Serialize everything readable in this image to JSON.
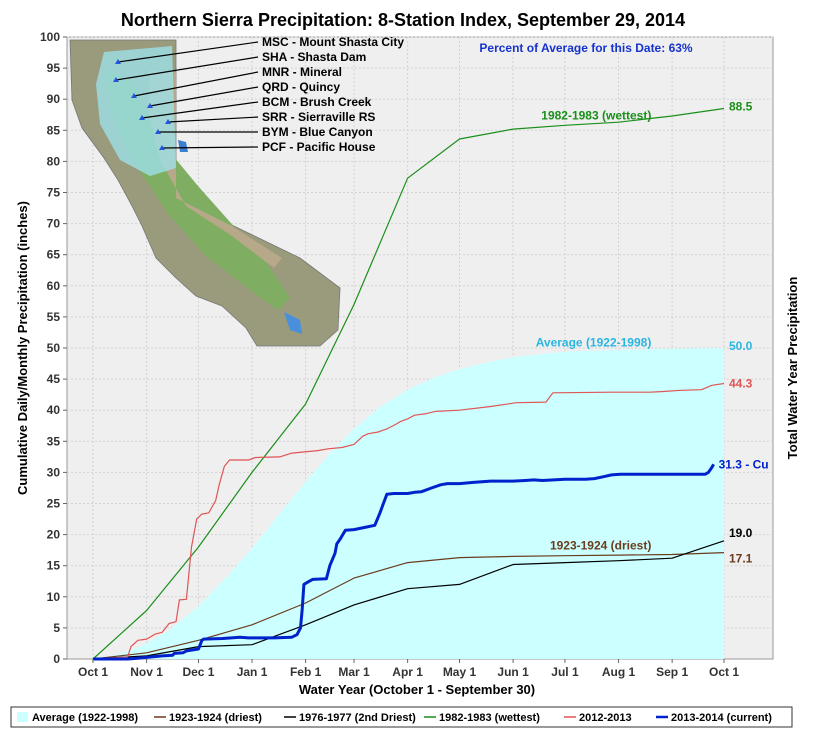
{
  "chart_data": {
    "type": "line",
    "title": "Northern Sierra Precipitation: 8-Station Index, September 29, 2014",
    "xlabel": "Water Year (October 1 - September 30)",
    "ylabel": "Cumulative Daily/Monthly Precipitation (inches)",
    "ylabel_right": "Total Water Year Precipitation",
    "annotation": "Percent of Average for this Date: 63%",
    "ylim": [
      0,
      100
    ],
    "yticks": [
      0,
      5,
      10,
      15,
      20,
      25,
      30,
      35,
      40,
      45,
      50,
      55,
      60,
      65,
      70,
      75,
      80,
      85,
      90,
      95,
      100
    ],
    "x_tick_labels": [
      "Oct 1",
      "Nov 1",
      "Dec 1",
      "Jan 1",
      "Feb 1",
      "Mar 1",
      "Apr 1",
      "May 1",
      "Jun 1",
      "Jul 1",
      "Aug 1",
      "Sep 1",
      "Oct 1"
    ],
    "x_unit": "days since Oct 1",
    "x_tick_days": [
      0,
      31,
      61,
      92,
      123,
      151,
      182,
      212,
      243,
      273,
      304,
      335,
      365
    ],
    "grid": true,
    "legend_position": "bottom",
    "series": [
      {
        "name": "Average (1922-1998)",
        "type": "area",
        "color": "#ccffff",
        "label_color": "#29b6e0",
        "points": [
          [
            0,
            0
          ],
          [
            10,
            0.4
          ],
          [
            20,
            1.2
          ],
          [
            31,
            2.5
          ],
          [
            45,
            4.8
          ],
          [
            61,
            8.5
          ],
          [
            76,
            12.8
          ],
          [
            92,
            17.8
          ],
          [
            107,
            23
          ],
          [
            123,
            28.5
          ],
          [
            137,
            33
          ],
          [
            151,
            37
          ],
          [
            166,
            40.5
          ],
          [
            182,
            43.3
          ],
          [
            197,
            45.2
          ],
          [
            212,
            46.6
          ],
          [
            227,
            47.6
          ],
          [
            243,
            48.5
          ],
          [
            258,
            49.0
          ],
          [
            273,
            49.4
          ],
          [
            304,
            49.7
          ],
          [
            335,
            49.9
          ],
          [
            365,
            50.0
          ]
        ],
        "end_label": "50.0",
        "curve_label": "Average (1922-1998)"
      },
      {
        "name": "1923-1924 (driest)",
        "color": "#6b3c1e",
        "points": [
          [
            0,
            0
          ],
          [
            31,
            1.0
          ],
          [
            61,
            3.0
          ],
          [
            92,
            5.5
          ],
          [
            123,
            9.0
          ],
          [
            151,
            13.0
          ],
          [
            182,
            15.5
          ],
          [
            212,
            16.3
          ],
          [
            243,
            16.5
          ],
          [
            273,
            16.6
          ],
          [
            304,
            16.7
          ],
          [
            335,
            16.8
          ],
          [
            365,
            17.1
          ]
        ],
        "end_label": "17.1",
        "curve_label": "1923-1924 (driest)"
      },
      {
        "name": "1976-1977 (2nd Driest)",
        "color": "#000000",
        "points": [
          [
            0,
            0
          ],
          [
            31,
            0.5
          ],
          [
            61,
            2.0
          ],
          [
            92,
            2.3
          ],
          [
            123,
            5.5
          ],
          [
            151,
            8.7
          ],
          [
            182,
            11.3
          ],
          [
            212,
            12.0
          ],
          [
            243,
            15.2
          ],
          [
            273,
            15.5
          ],
          [
            304,
            15.8
          ],
          [
            335,
            16.2
          ],
          [
            365,
            19.0
          ]
        ],
        "end_label": "19.0"
      },
      {
        "name": "1982-1983 (wettest)",
        "color": "#1a8f1a",
        "points": [
          [
            0,
            0
          ],
          [
            31,
            7.8
          ],
          [
            61,
            18
          ],
          [
            92,
            30
          ],
          [
            123,
            41
          ],
          [
            151,
            57
          ],
          [
            182,
            77.3
          ],
          [
            212,
            83.6
          ],
          [
            243,
            85.2
          ],
          [
            273,
            85.8
          ],
          [
            304,
            86.3
          ],
          [
            335,
            87.3
          ],
          [
            365,
            88.5
          ]
        ],
        "end_label": "88.5",
        "curve_label": "1982-1983 (wettest)"
      },
      {
        "name": "2012-2013",
        "color": "#e05555",
        "points": [
          [
            0,
            0
          ],
          [
            20,
            0.3
          ],
          [
            22,
            2
          ],
          [
            26,
            3.0
          ],
          [
            31,
            3.2
          ],
          [
            36,
            4
          ],
          [
            40,
            4.3
          ],
          [
            44,
            5.7
          ],
          [
            48,
            6
          ],
          [
            50,
            9.5
          ],
          [
            54,
            9.6
          ],
          [
            57,
            18
          ],
          [
            60,
            22.5
          ],
          [
            63,
            23.3
          ],
          [
            67,
            23.5
          ],
          [
            71,
            25.5
          ],
          [
            73,
            28
          ],
          [
            76,
            31
          ],
          [
            79,
            32
          ],
          [
            90,
            32
          ],
          [
            94,
            32.4
          ],
          [
            108,
            32.5
          ],
          [
            115,
            33.1
          ],
          [
            130,
            33.5
          ],
          [
            136,
            33.8
          ],
          [
            144,
            34
          ],
          [
            151,
            34.5
          ],
          [
            156,
            35.8
          ],
          [
            159,
            36.2
          ],
          [
            165,
            36.5
          ],
          [
            170,
            37.0
          ],
          [
            175,
            37.7
          ],
          [
            178,
            38.2
          ],
          [
            182,
            38.6
          ],
          [
            186,
            39.2
          ],
          [
            192,
            39.4
          ],
          [
            198,
            39.8
          ],
          [
            212,
            40.0
          ],
          [
            230,
            40.6
          ],
          [
            245,
            41.2
          ],
          [
            262,
            41.3
          ],
          [
            266,
            42.8
          ],
          [
            300,
            42.9
          ],
          [
            312,
            42.9
          ],
          [
            322,
            42.9
          ],
          [
            330,
            43.0
          ],
          [
            340,
            43.2
          ],
          [
            352,
            43.3
          ],
          [
            358,
            44.0
          ],
          [
            365,
            44.3
          ]
        ],
        "end_label": "44.3"
      },
      {
        "name": "2013-2014 (current)",
        "color": "#0022cc",
        "points": [
          [
            0,
            0
          ],
          [
            20,
            0
          ],
          [
            25,
            0.1
          ],
          [
            40,
            0.5
          ],
          [
            46,
            0.6
          ],
          [
            47,
            0.9
          ],
          [
            52,
            1.0
          ],
          [
            54,
            1.3
          ],
          [
            61,
            1.6
          ],
          [
            63,
            3.0
          ],
          [
            64,
            3.2
          ],
          [
            75,
            3.3
          ],
          [
            85,
            3.5
          ],
          [
            90,
            3.4
          ],
          [
            105,
            3.4
          ],
          [
            115,
            3.5
          ],
          [
            118,
            3.9
          ],
          [
            120,
            5.0
          ],
          [
            121,
            8.0
          ],
          [
            122,
            12.0
          ],
          [
            125,
            12.5
          ],
          [
            127,
            12.8
          ],
          [
            135,
            12.9
          ],
          [
            137,
            15.0
          ],
          [
            140,
            17.0
          ],
          [
            141,
            18.5
          ],
          [
            143,
            19.3
          ],
          [
            146,
            20.7
          ],
          [
            151,
            20.8
          ],
          [
            158,
            21.2
          ],
          [
            163,
            21.5
          ],
          [
            166,
            23.5
          ],
          [
            168,
            25.0
          ],
          [
            170,
            26.5
          ],
          [
            174,
            26.6
          ],
          [
            182,
            26.6
          ],
          [
            186,
            26.8
          ],
          [
            190,
            26.9
          ],
          [
            196,
            27.5
          ],
          [
            199,
            27.8
          ],
          [
            201,
            28.0
          ],
          [
            205,
            28.2
          ],
          [
            212,
            28.2
          ],
          [
            220,
            28.4
          ],
          [
            230,
            28.6
          ],
          [
            243,
            28.6
          ],
          [
            250,
            28.7
          ],
          [
            255,
            28.8
          ],
          [
            260,
            28.7
          ],
          [
            273,
            28.9
          ],
          [
            285,
            28.9
          ],
          [
            290,
            29.0
          ],
          [
            295,
            29.3
          ],
          [
            300,
            29.6
          ],
          [
            305,
            29.7
          ],
          [
            325,
            29.7
          ],
          [
            335,
            29.7
          ],
          [
            350,
            29.7
          ],
          [
            354,
            29.7
          ],
          [
            356,
            30.0
          ],
          [
            358,
            30.8
          ],
          [
            359,
            31.3
          ]
        ],
        "end_label": "31.3 - Cu"
      }
    ],
    "stations": [
      {
        "label": "MSC - Mount Shasta City"
      },
      {
        "label": "SHA - Shasta Dam"
      },
      {
        "label": "MNR - Mineral"
      },
      {
        "label": "QRD - Quincy"
      },
      {
        "label": "BCM - Brush Creek"
      },
      {
        "label": "SRR - Sierraville RS"
      },
      {
        "label": "BYM - Blue Canyon"
      },
      {
        "label": "PCF - Pacific House"
      }
    ],
    "legend": [
      {
        "label": "Average (1922-1998)",
        "color": "#ccffff"
      },
      {
        "label": "1923-1924 (driest)",
        "color": "#6b3c1e"
      },
      {
        "label": "1976-1977 (2nd Driest)",
        "color": "#000000"
      },
      {
        "label": "1982-1983 (wettest)",
        "color": "#1a8f1a"
      },
      {
        "label": "2012-2013",
        "color": "#e05555"
      },
      {
        "label": "2013-2014 (current)",
        "color": "#0022cc"
      }
    ]
  }
}
